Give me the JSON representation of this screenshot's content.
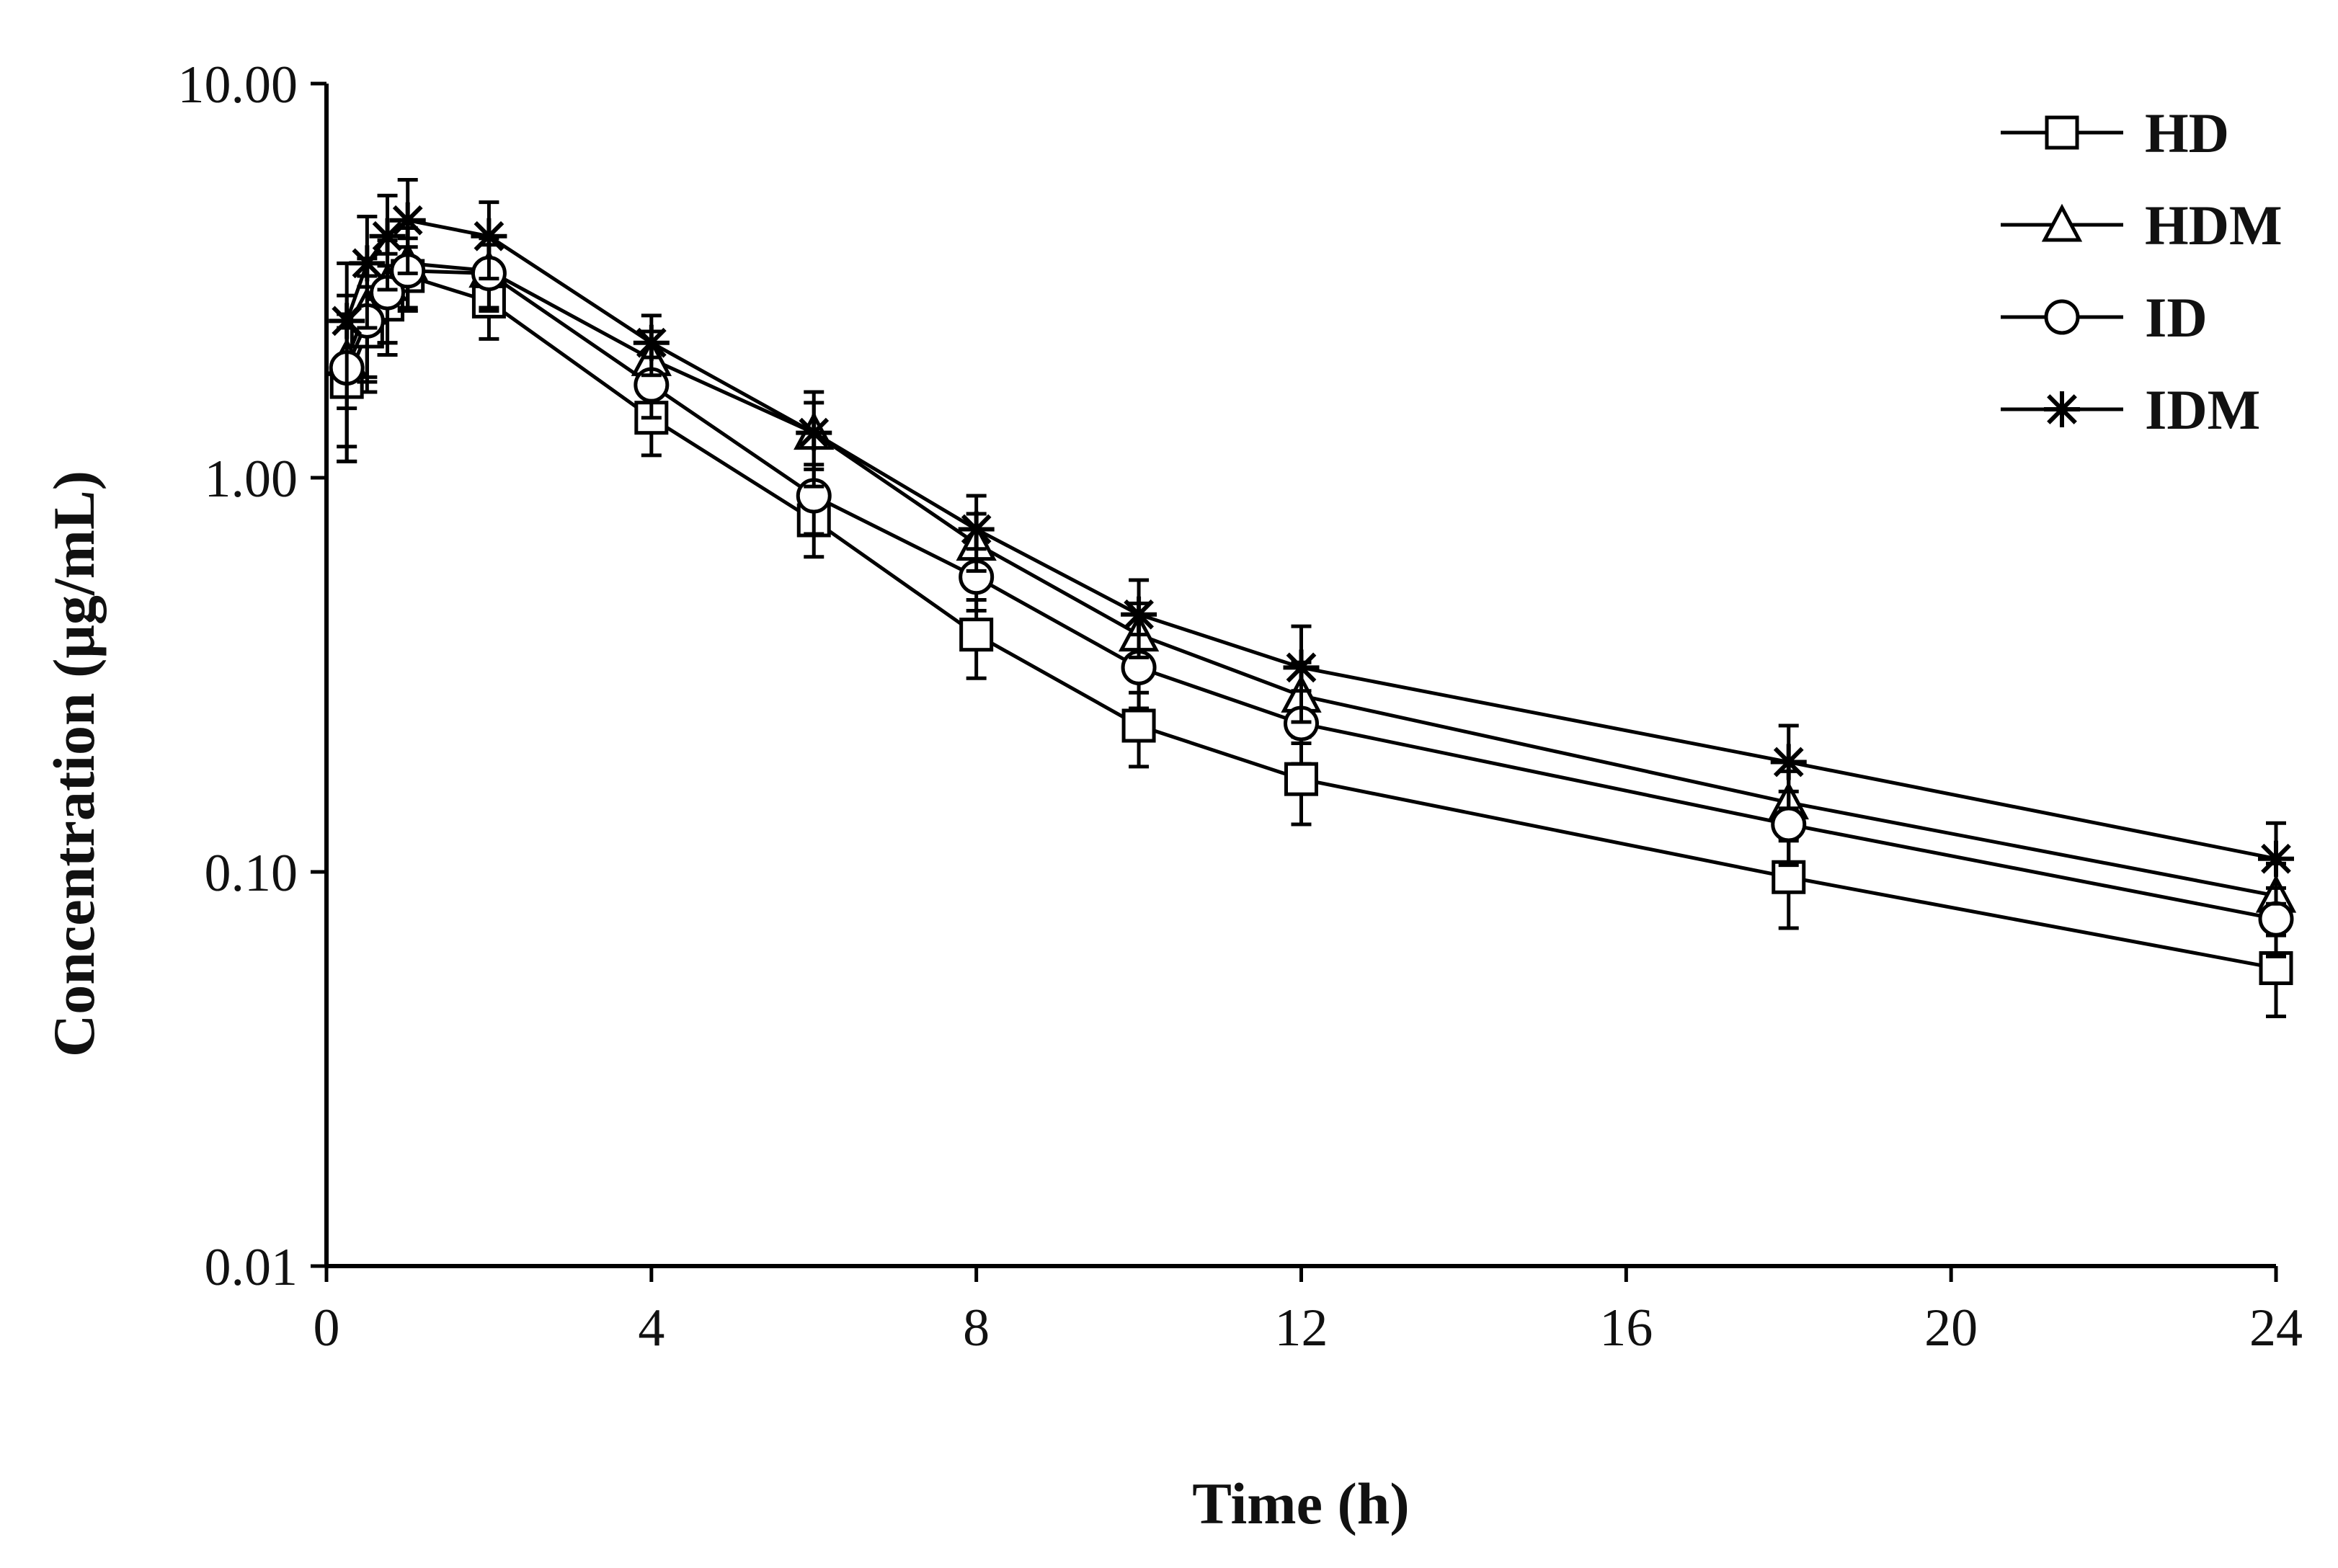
{
  "chart_data": {
    "type": "line",
    "title": "",
    "xlabel": "Time (h)",
    "ylabel": "Concentration (μg/mL)",
    "xlim": [
      0,
      24
    ],
    "ylim": [
      0.01,
      10
    ],
    "yscale": "log",
    "xticks": [
      0,
      4,
      8,
      12,
      16,
      20,
      24
    ],
    "xtick_labels": [
      "0",
      "4",
      "8",
      "12",
      "16",
      "20",
      "24"
    ],
    "yticks": [
      0.01,
      0.1,
      1,
      10
    ],
    "ytick_labels": [
      "0.01",
      "0.10",
      "1.00",
      "10.00"
    ],
    "grid": false,
    "legend": "top-right",
    "x": [
      0.25,
      0.5,
      0.75,
      1,
      2,
      4,
      6,
      8,
      10,
      12,
      18,
      24
    ],
    "series": [
      {
        "name": "HD",
        "marker": "square",
        "values": [
          1.75,
          2.35,
          2.75,
          3.25,
          2.8,
          1.42,
          0.78,
          0.4,
          0.235,
          0.172,
          0.097,
          0.057
        ],
        "errors": [
          0.65,
          0.7,
          0.7,
          0.6,
          0.55,
          0.28,
          0.15,
          0.09,
          0.05,
          0.04,
          0.025,
          0.014
        ]
      },
      {
        "name": "HDM",
        "marker": "triangle",
        "values": [
          2.0,
          2.7,
          3.1,
          3.5,
          3.35,
          2.0,
          1.3,
          0.68,
          0.4,
          0.28,
          0.15,
          0.087
        ],
        "errors": [
          0.9,
          0.9,
          0.9,
          0.8,
          0.7,
          0.35,
          0.25,
          0.13,
          0.08,
          0.06,
          0.03,
          0.018
        ]
      },
      {
        "name": "ID",
        "marker": "circle",
        "values": [
          1.9,
          2.5,
          2.95,
          3.35,
          3.3,
          1.72,
          0.9,
          0.56,
          0.33,
          0.238,
          0.132,
          0.076
        ],
        "errors": [
          0.7,
          0.75,
          0.75,
          0.7,
          0.6,
          0.3,
          0.18,
          0.1,
          0.07,
          0.05,
          0.028,
          0.015
        ]
      },
      {
        "name": "IDM",
        "marker": "star",
        "values": [
          2.5,
          3.5,
          4.1,
          4.5,
          4.1,
          2.2,
          1.3,
          0.74,
          0.45,
          0.33,
          0.19,
          0.108
        ],
        "errors": [
          1.0,
          1.1,
          1.1,
          1.2,
          0.9,
          0.38,
          0.35,
          0.16,
          0.1,
          0.09,
          0.045,
          0.025
        ]
      }
    ]
  }
}
